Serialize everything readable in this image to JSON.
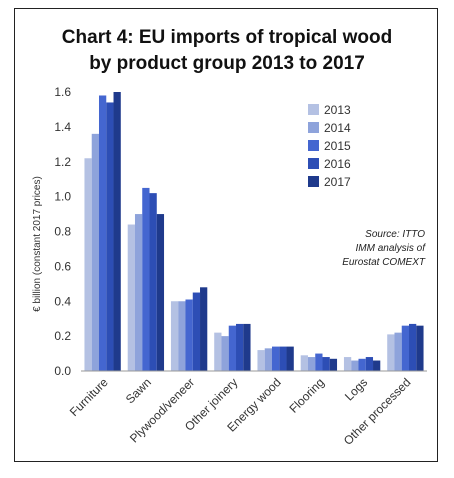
{
  "chart_data": {
    "type": "bar",
    "title_lines": [
      "Chart 4: EU imports of tropical wood",
      "by product group 2013 to 2017"
    ],
    "ylabel": "€ billion (constant 2017 prices)",
    "xlabel": "",
    "ylim": [
      0,
      1.6
    ],
    "yticks": [
      "0.0",
      "0.2",
      "0.4",
      "0.6",
      "0.8",
      "1.0",
      "1.2",
      "1.4",
      "1.6"
    ],
    "ytick_values": [
      0,
      0.2,
      0.4,
      0.6,
      0.8,
      1.0,
      1.2,
      1.4,
      1.6
    ],
    "grid": false,
    "legend_position": "upper right",
    "categories": [
      "Furniture",
      "Sawn",
      "Plywood/veneer",
      "Other joinery",
      "Energy wood",
      "Flooring",
      "Logs",
      "Other processed"
    ],
    "series": [
      {
        "name": "2013",
        "color": "#b4c1e3",
        "values": [
          1.22,
          0.84,
          0.4,
          0.22,
          0.12,
          0.09,
          0.08,
          0.21
        ]
      },
      {
        "name": "2014",
        "color": "#8ea3db",
        "values": [
          1.36,
          0.9,
          0.4,
          0.2,
          0.13,
          0.08,
          0.06,
          0.22
        ]
      },
      {
        "name": "2015",
        "color": "#4466d0",
        "values": [
          1.58,
          1.05,
          0.41,
          0.26,
          0.14,
          0.1,
          0.07,
          0.26
        ]
      },
      {
        "name": "2016",
        "color": "#2d4eb5",
        "values": [
          1.54,
          1.02,
          0.45,
          0.27,
          0.14,
          0.08,
          0.08,
          0.27
        ]
      },
      {
        "name": "2017",
        "color": "#1f3a8c",
        "values": [
          1.62,
          0.9,
          0.48,
          0.27,
          0.14,
          0.07,
          0.06,
          0.26
        ]
      }
    ],
    "source_lines": [
      "Source: ITTO",
      "IMM analysis of",
      "Eurostat COMEXT"
    ]
  }
}
